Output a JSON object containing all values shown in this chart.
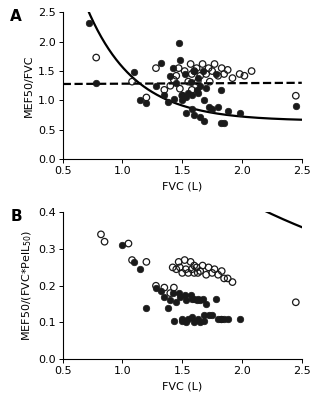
{
  "panel_A": {
    "label": "A",
    "xlabel": "FVC (L)",
    "ylabel": "MEF50/FVC",
    "xlim": [
      0.5,
      2.5
    ],
    "ylim": [
      0.0,
      2.5
    ],
    "xticks": [
      0.5,
      1.0,
      1.5,
      2.0,
      2.5
    ],
    "yticks": [
      0.0,
      0.5,
      1.0,
      1.5,
      2.0,
      2.5
    ],
    "filled_dots": [
      [
        0.72,
        2.32
      ],
      [
        0.78,
        1.3
      ],
      [
        1.1,
        1.48
      ],
      [
        1.15,
        1.0
      ],
      [
        1.2,
        0.95
      ],
      [
        1.28,
        1.25
      ],
      [
        1.32,
        1.63
      ],
      [
        1.35,
        1.1
      ],
      [
        1.38,
        0.97
      ],
      [
        1.4,
        1.42
      ],
      [
        1.42,
        1.55
      ],
      [
        1.43,
        1.02
      ],
      [
        1.45,
        1.3
      ],
      [
        1.47,
        1.98
      ],
      [
        1.48,
        1.68
      ],
      [
        1.5,
        1.1
      ],
      [
        1.5,
        1.0
      ],
      [
        1.52,
        1.45
      ],
      [
        1.53,
        1.05
      ],
      [
        1.53,
        0.78
      ],
      [
        1.55,
        1.12
      ],
      [
        1.57,
        1.32
      ],
      [
        1.58,
        1.1
      ],
      [
        1.58,
        0.85
      ],
      [
        1.6,
        0.75
      ],
      [
        1.6,
        1.5
      ],
      [
        1.62,
        1.18
      ],
      [
        1.63,
        1.38
      ],
      [
        1.63,
        1.12
      ],
      [
        1.65,
        0.72
      ],
      [
        1.65,
        1.25
      ],
      [
        1.67,
        1.5
      ],
      [
        1.68,
        1.0
      ],
      [
        1.68,
        0.65
      ],
      [
        1.7,
        1.22
      ],
      [
        1.72,
        0.88
      ],
      [
        1.75,
        0.85
      ],
      [
        1.78,
        1.45
      ],
      [
        1.8,
        0.88
      ],
      [
        1.82,
        1.18
      ],
      [
        1.82,
        0.62
      ],
      [
        1.85,
        0.62
      ],
      [
        1.88,
        0.82
      ],
      [
        1.98,
        0.78
      ],
      [
        2.45,
        0.9
      ]
    ],
    "open_dots": [
      [
        0.78,
        1.73
      ],
      [
        1.08,
        1.32
      ],
      [
        1.2,
        1.05
      ],
      [
        1.28,
        1.55
      ],
      [
        1.35,
        1.18
      ],
      [
        1.4,
        1.25
      ],
      [
        1.43,
        1.35
      ],
      [
        1.45,
        1.42
      ],
      [
        1.47,
        1.55
      ],
      [
        1.48,
        1.2
      ],
      [
        1.5,
        1.08
      ],
      [
        1.52,
        1.5
      ],
      [
        1.55,
        1.32
      ],
      [
        1.57,
        1.62
      ],
      [
        1.58,
        1.45
      ],
      [
        1.58,
        1.18
      ],
      [
        1.6,
        1.5
      ],
      [
        1.62,
        1.55
      ],
      [
        1.63,
        1.32
      ],
      [
        1.65,
        1.42
      ],
      [
        1.67,
        1.62
      ],
      [
        1.7,
        1.45
      ],
      [
        1.72,
        1.55
      ],
      [
        1.73,
        1.32
      ],
      [
        1.75,
        1.5
      ],
      [
        1.77,
        1.62
      ],
      [
        1.8,
        1.42
      ],
      [
        1.83,
        1.55
      ],
      [
        1.85,
        1.45
      ],
      [
        1.88,
        1.52
      ],
      [
        1.92,
        1.38
      ],
      [
        1.98,
        1.45
      ],
      [
        2.02,
        1.42
      ],
      [
        2.08,
        1.5
      ],
      [
        2.45,
        1.08
      ]
    ],
    "filled_curve_coeffs": [
      3.2,
      -2.5,
      0.65
    ],
    "open_line": [
      [
        0.5,
        1.28
      ],
      [
        2.5,
        1.3
      ]
    ]
  },
  "panel_B": {
    "label": "B",
    "xlabel": "FVC (L)",
    "ylabel": "MEF50/(FVC*PelL$_{50}$)",
    "xlim": [
      0.5,
      2.5
    ],
    "ylim": [
      0.0,
      0.4
    ],
    "xticks": [
      0.5,
      1.0,
      1.5,
      2.0,
      2.5
    ],
    "yticks": [
      0.0,
      0.1,
      0.2,
      0.3,
      0.4
    ],
    "filled_dots": [
      [
        1.0,
        0.31
      ],
      [
        1.1,
        0.265
      ],
      [
        1.15,
        0.245
      ],
      [
        1.2,
        0.14
      ],
      [
        1.28,
        0.195
      ],
      [
        1.32,
        0.185
      ],
      [
        1.35,
        0.17
      ],
      [
        1.38,
        0.14
      ],
      [
        1.4,
        0.16
      ],
      [
        1.42,
        0.18
      ],
      [
        1.43,
        0.105
      ],
      [
        1.45,
        0.155
      ],
      [
        1.47,
        0.18
      ],
      [
        1.48,
        0.17
      ],
      [
        1.5,
        0.105
      ],
      [
        1.5,
        0.11
      ],
      [
        1.52,
        0.175
      ],
      [
        1.53,
        0.16
      ],
      [
        1.53,
        0.1
      ],
      [
        1.55,
        0.11
      ],
      [
        1.57,
        0.175
      ],
      [
        1.58,
        0.165
      ],
      [
        1.58,
        0.115
      ],
      [
        1.6,
        0.1
      ],
      [
        1.6,
        0.165
      ],
      [
        1.62,
        0.16
      ],
      [
        1.63,
        0.165
      ],
      [
        1.63,
        0.11
      ],
      [
        1.65,
        0.1
      ],
      [
        1.65,
        0.16
      ],
      [
        1.67,
        0.165
      ],
      [
        1.68,
        0.12
      ],
      [
        1.68,
        0.105
      ],
      [
        1.7,
        0.15
      ],
      [
        1.72,
        0.12
      ],
      [
        1.75,
        0.12
      ],
      [
        1.78,
        0.165
      ],
      [
        1.8,
        0.11
      ],
      [
        1.82,
        0.11
      ],
      [
        1.82,
        0.11
      ],
      [
        1.85,
        0.11
      ],
      [
        1.88,
        0.11
      ],
      [
        1.98,
        0.11
      ]
    ],
    "open_dots": [
      [
        0.82,
        0.34
      ],
      [
        0.85,
        0.32
      ],
      [
        1.05,
        0.315
      ],
      [
        1.08,
        0.27
      ],
      [
        1.2,
        0.265
      ],
      [
        1.28,
        0.2
      ],
      [
        1.35,
        0.195
      ],
      [
        1.4,
        0.18
      ],
      [
        1.42,
        0.25
      ],
      [
        1.43,
        0.195
      ],
      [
        1.45,
        0.245
      ],
      [
        1.47,
        0.265
      ],
      [
        1.48,
        0.25
      ],
      [
        1.5,
        0.235
      ],
      [
        1.52,
        0.27
      ],
      [
        1.53,
        0.245
      ],
      [
        1.55,
        0.235
      ],
      [
        1.57,
        0.265
      ],
      [
        1.58,
        0.245
      ],
      [
        1.6,
        0.255
      ],
      [
        1.6,
        0.235
      ],
      [
        1.62,
        0.25
      ],
      [
        1.63,
        0.235
      ],
      [
        1.65,
        0.24
      ],
      [
        1.67,
        0.255
      ],
      [
        1.7,
        0.23
      ],
      [
        1.72,
        0.25
      ],
      [
        1.75,
        0.235
      ],
      [
        1.77,
        0.245
      ],
      [
        1.8,
        0.23
      ],
      [
        1.83,
        0.24
      ],
      [
        1.85,
        0.22
      ],
      [
        1.88,
        0.22
      ],
      [
        1.92,
        0.21
      ],
      [
        2.45,
        0.155
      ]
    ],
    "filled_curve_coeffs": [
      0.72,
      -0.55,
      0.12
    ],
    "open_curve_coeffs": [
      0.42,
      -0.22,
      0.165
    ]
  },
  "dot_size": 22,
  "linewidth": 1.6,
  "filled_color": "#1a1a1a",
  "open_color": "#1a1a1a",
  "background_color": "#ffffff",
  "font_size": 8,
  "label_font_size": 8
}
